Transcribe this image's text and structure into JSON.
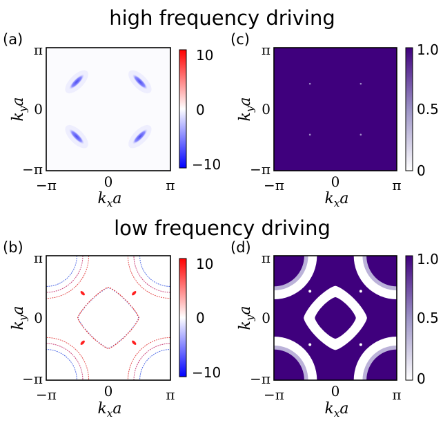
{
  "figure": {
    "titles": {
      "top": "high frequency driving",
      "bottom": "low frequency driving"
    }
  },
  "chart_data": [
    {
      "id": "a",
      "panel_label": "(a)",
      "type": "heatmap",
      "xlabel": "k_x a",
      "ylabel": "k_y a",
      "x_ticks": [
        "−π",
        "0",
        "π"
      ],
      "y_ticks": [
        "π",
        "0",
        "−π"
      ],
      "xlim": [
        -3.1416,
        3.1416
      ],
      "ylim": [
        -3.1416,
        3.1416
      ],
      "colormap": "diverging blue-white-red",
      "colorbar": {
        "min": -10,
        "max": 10,
        "ticks": [
          "10",
          "0",
          "−10"
        ]
      },
      "features": [
        {
          "kx": -1.6,
          "ky": 1.4,
          "value": -10,
          "shape": "ellipse",
          "angle_deg": -45
        },
        {
          "kx": 1.6,
          "ky": 1.4,
          "value": -10,
          "shape": "ellipse",
          "angle_deg": 45
        },
        {
          "kx": -1.6,
          "ky": -1.4,
          "value": -10,
          "shape": "ellipse",
          "angle_deg": 45
        },
        {
          "kx": 1.6,
          "ky": -1.4,
          "value": -10,
          "shape": "ellipse",
          "angle_deg": -45
        }
      ]
    },
    {
      "id": "c",
      "panel_label": "(c)",
      "type": "heatmap",
      "xlabel": "k_x a",
      "ylabel": "k_y a",
      "x_ticks": [
        "−π",
        "0",
        "π"
      ],
      "y_ticks": [
        "π",
        "0",
        "−π"
      ],
      "xlim": [
        -3.1416,
        3.1416
      ],
      "ylim": [
        -3.1416,
        3.1416
      ],
      "colormap": "white to purple",
      "colorbar": {
        "min": 0,
        "max": 1.0,
        "ticks": [
          "1.0",
          "0.5",
          "0"
        ]
      },
      "background_value": 1.0,
      "features": [
        {
          "kx": -1.3,
          "ky": 1.3,
          "value": 0.3,
          "shape": "speck"
        },
        {
          "kx": 1.3,
          "ky": 1.3,
          "value": 0.3,
          "shape": "speck"
        },
        {
          "kx": -1.3,
          "ky": -1.3,
          "value": 0.3,
          "shape": "speck"
        },
        {
          "kx": 1.3,
          "ky": -1.3,
          "value": 0.3,
          "shape": "speck"
        }
      ]
    },
    {
      "id": "b",
      "panel_label": "(b)",
      "type": "heatmap",
      "xlabel": "k_x a",
      "ylabel": "k_y a",
      "x_ticks": [
        "−π",
        "0",
        "π"
      ],
      "y_ticks": [
        "π",
        "0",
        "−π"
      ],
      "xlim": [
        -3.1416,
        3.1416
      ],
      "ylim": [
        -3.1416,
        3.1416
      ],
      "colormap": "diverging blue-white-red",
      "colorbar": {
        "min": -10,
        "max": 10,
        "ticks": [
          "10",
          "0",
          "−10"
        ]
      },
      "features": [
        {
          "shape": "central rounded-diamond contour",
          "radius": 1.55,
          "value": 8
        },
        {
          "shape": "corner arcs",
          "radii": [
            1.55,
            1.85,
            2.15
          ],
          "value": 8
        },
        {
          "kx": -1.3,
          "ky": 1.25,
          "value": 10,
          "shape": "speck"
        },
        {
          "kx": 1.3,
          "ky": 1.25,
          "value": 10,
          "shape": "speck"
        },
        {
          "kx": -1.3,
          "ky": -1.25,
          "value": 10,
          "shape": "speck"
        },
        {
          "kx": 1.3,
          "ky": -1.25,
          "value": 10,
          "shape": "speck"
        }
      ]
    },
    {
      "id": "d",
      "panel_label": "(d)",
      "type": "heatmap",
      "xlabel": "k_x a",
      "ylabel": "k_y a",
      "x_ticks": [
        "−π",
        "0",
        "π"
      ],
      "y_ticks": [
        "π",
        "0",
        "−π"
      ],
      "xlim": [
        -3.1416,
        3.1416
      ],
      "ylim": [
        -3.1416,
        3.1416
      ],
      "colormap": "white to purple",
      "colorbar": {
        "min": 0,
        "max": 1.0,
        "ticks": [
          "1.0",
          "0.5",
          "0"
        ]
      },
      "background_value": 1.0,
      "features": [
        {
          "shape": "central ring",
          "inner_radius": 1.05,
          "outer_radius": 1.6,
          "value": 0
        },
        {
          "shape": "corner ring arcs",
          "inner_radius": 1.55,
          "outer_radius": 2.2,
          "value": 0
        },
        {
          "kx": -1.3,
          "ky": 1.35,
          "value": 0,
          "shape": "speck"
        },
        {
          "kx": 1.3,
          "ky": 1.35,
          "value": 0,
          "shape": "speck"
        },
        {
          "kx": -1.3,
          "ky": -1.35,
          "value": 0,
          "shape": "speck"
        },
        {
          "kx": 1.3,
          "ky": -1.35,
          "value": 0,
          "shape": "speck"
        }
      ]
    }
  ]
}
